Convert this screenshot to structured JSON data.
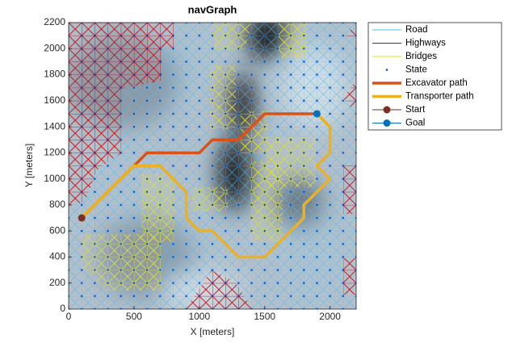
{
  "chart_data": {
    "type": "line",
    "title": "navGraph",
    "xlabel": "X [meters]",
    "ylabel": "Y [meters]",
    "xlim": [
      0,
      2200
    ],
    "ylim": [
      0,
      2200
    ],
    "xticks": [
      0,
      500,
      1000,
      1500,
      2000
    ],
    "yticks": [
      0,
      200,
      400,
      600,
      800,
      1000,
      1200,
      1400,
      1600,
      1800,
      2000,
      2200
    ],
    "legend": "outside-right",
    "series": [
      {
        "name": "Road",
        "color": "#4dbeee",
        "linewidth": 1
      },
      {
        "name": "Highways",
        "color": "#d40000",
        "linewidth": 1
      },
      {
        "name": "Bridges",
        "color": "#e8e01a",
        "linewidth": 1
      },
      {
        "name": "State",
        "color": "#0a3fd8",
        "marker": true
      },
      {
        "name": "Excavator path",
        "color": "#d95319",
        "linewidth": 3.5,
        "x": [
          100,
          500,
          600,
          1000,
          1100,
          1300,
          1500,
          1900
        ],
        "y": [
          700,
          1100,
          1200,
          1200,
          1300,
          1300,
          1500,
          1500
        ]
      },
      {
        "name": "Transporter path",
        "color": "#edb120",
        "linewidth": 3.5,
        "x": [
          100,
          500,
          700,
          900,
          900,
          1000,
          1100,
          1300,
          1500,
          1800,
          1800,
          2000,
          1900,
          2000,
          2000,
          1900
        ],
        "y": [
          700,
          1100,
          1100,
          900,
          700,
          600,
          600,
          400,
          400,
          700,
          800,
          1000,
          1100,
          1200,
          1400,
          1500
        ]
      },
      {
        "name": "Start",
        "color": "#7e2f20",
        "linewidth": 1,
        "marker": true,
        "x": [
          100
        ],
        "y": [
          700
        ]
      },
      {
        "name": "Goal",
        "color": "#0072bd",
        "linewidth": 1,
        "marker": true,
        "x": [
          1900
        ],
        "y": [
          1500
        ]
      }
    ]
  }
}
